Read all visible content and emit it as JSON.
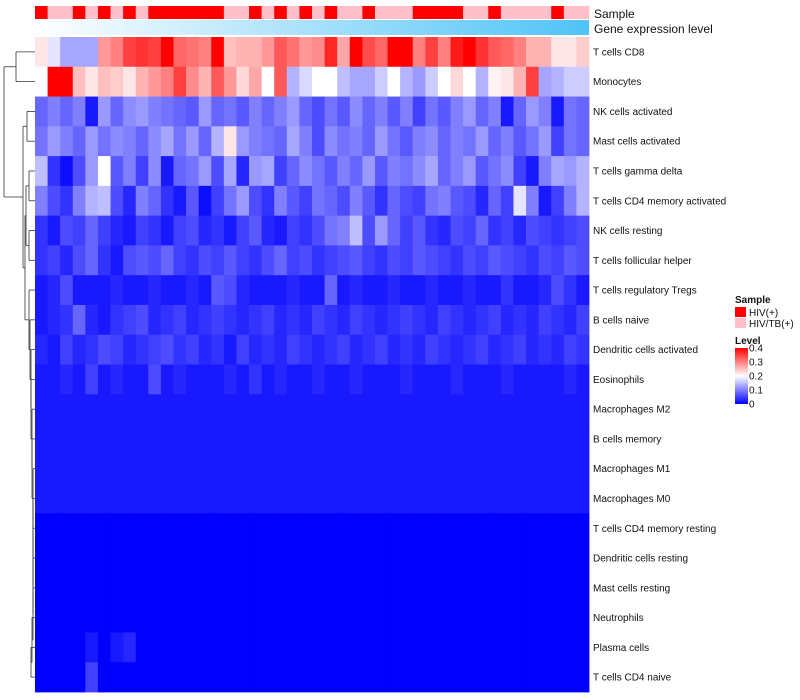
{
  "chart_data": {
    "type": "heatmap",
    "title": "",
    "rows": [
      "T cells CD8",
      "Monocytes",
      "NK cells activated",
      "Mast cells activated",
      "T cells gamma delta",
      "T cells CD4 memory activated",
      "NK cells resting",
      "T cells follicular helper",
      "T cells regulatory  Tregs",
      "B cells naive",
      "Dendritic cells activated",
      "Eosinophils",
      "Macrophages M2",
      "B cells memory",
      "Macrophages M1",
      "Macrophages M0",
      "T cells CD4 memory resting",
      "Dendritic cells resting",
      "Mast cells resting",
      "Neutrophils",
      "Plasma cells",
      "T cells CD4 naive"
    ],
    "n_samples": 44,
    "sample_groups": [
      "HIV(+)",
      "HIV/TB(+)",
      "HIV/TB(+)",
      "HIV(+)",
      "HIV/TB(+)",
      "HIV(+)",
      "HIV/TB(+)",
      "HIV(+)",
      "HIV/TB(+)",
      "HIV(+)",
      "HIV(+)",
      "HIV(+)",
      "HIV(+)",
      "HIV(+)",
      "HIV(+)",
      "HIV/TB(+)",
      "HIV/TB(+)",
      "HIV(+)",
      "HIV/TB(+)",
      "HIV(+)",
      "HIV/TB(+)",
      "HIV(+)",
      "HIV/TB(+)",
      "HIV(+)",
      "HIV/TB(+)",
      "HIV/TB(+)",
      "HIV(+)",
      "HIV/TB(+)",
      "HIV/TB(+)",
      "HIV/TB(+)",
      "HIV(+)",
      "HIV(+)",
      "HIV(+)",
      "HIV(+)",
      "HIV/TB(+)",
      "HIV/TB(+)",
      "HIV(+)",
      "HIV/TB(+)",
      "HIV/TB(+)",
      "HIV/TB(+)",
      "HIV/TB(+)",
      "HIV(+)",
      "HIV/TB(+)",
      "HIV/TB(+)"
    ],
    "values": [
      [
        0.22,
        0.18,
        0.13,
        0.13,
        0.13,
        0.28,
        0.3,
        0.35,
        0.36,
        0.35,
        0.4,
        0.32,
        0.31,
        0.3,
        0.4,
        0.25,
        0.26,
        0.26,
        0.28,
        0.33,
        0.31,
        0.28,
        0.29,
        0.37,
        0.27,
        0.4,
        0.34,
        0.32,
        0.4,
        0.4,
        0.3,
        0.35,
        0.3,
        0.38,
        0.4,
        0.36,
        0.33,
        0.32,
        0.3,
        0.26,
        0.26,
        0.22,
        0.22,
        0.24
      ],
      [
        0.2,
        0.4,
        0.4,
        0.25,
        0.22,
        0.25,
        0.24,
        0.22,
        0.26,
        0.28,
        0.3,
        0.35,
        0.29,
        0.26,
        0.33,
        0.28,
        0.23,
        0.27,
        0.2,
        0.33,
        0.14,
        0.17,
        0.2,
        0.2,
        0.15,
        0.13,
        0.13,
        0.16,
        0.2,
        0.14,
        0.12,
        0.16,
        0.2,
        0.23,
        0.2,
        0.14,
        0.21,
        0.22,
        0.26,
        0.35,
        0.13,
        0.14,
        0.16,
        0.16
      ],
      [
        0.08,
        0.1,
        0.08,
        0.1,
        0.02,
        0.12,
        0.08,
        0.11,
        0.12,
        0.1,
        0.09,
        0.08,
        0.07,
        0.12,
        0.08,
        0.09,
        0.07,
        0.1,
        0.08,
        0.1,
        0.12,
        0.08,
        0.06,
        0.09,
        0.07,
        0.11,
        0.08,
        0.1,
        0.07,
        0.1,
        0.05,
        0.09,
        0.07,
        0.1,
        0.12,
        0.08,
        0.1,
        0.02,
        0.08,
        0.12,
        0.1,
        0.02,
        0.09,
        0.08
      ],
      [
        0.09,
        0.12,
        0.1,
        0.08,
        0.12,
        0.09,
        0.11,
        0.1,
        0.08,
        0.11,
        0.13,
        0.09,
        0.12,
        0.08,
        0.14,
        0.22,
        0.12,
        0.1,
        0.09,
        0.08,
        0.13,
        0.1,
        0.06,
        0.11,
        0.09,
        0.1,
        0.08,
        0.12,
        0.09,
        0.07,
        0.1,
        0.11,
        0.08,
        0.1,
        0.09,
        0.12,
        0.08,
        0.1,
        0.07,
        0.09,
        0.12,
        0.05,
        0.09,
        0.08
      ],
      [
        0.15,
        0.04,
        0.01,
        0.06,
        0.12,
        0.2,
        0.07,
        0.1,
        0.05,
        0.11,
        0.02,
        0.08,
        0.09,
        0.12,
        0.06,
        0.13,
        0.03,
        0.12,
        0.13,
        0.05,
        0.08,
        0.11,
        0.09,
        0.07,
        0.1,
        0.08,
        0.12,
        0.07,
        0.1,
        0.09,
        0.11,
        0.13,
        0.08,
        0.1,
        0.12,
        0.07,
        0.09,
        0.11,
        0.05,
        0.02,
        0.1,
        0.13,
        0.12,
        0.14
      ],
      [
        0.1,
        0.06,
        0.04,
        0.1,
        0.14,
        0.15,
        0.06,
        0.03,
        0.1,
        0.08,
        0.04,
        0.02,
        0.07,
        0.01,
        0.05,
        0.09,
        0.12,
        0.06,
        0.04,
        0.1,
        0.07,
        0.05,
        0.09,
        0.08,
        0.06,
        0.1,
        0.07,
        0.04,
        0.08,
        0.06,
        0.05,
        0.09,
        0.1,
        0.07,
        0.06,
        0.03,
        0.08,
        0.05,
        0.18,
        0.1,
        0.02,
        0.05,
        0.1,
        0.14
      ],
      [
        0.04,
        0.02,
        0.06,
        0.05,
        0.08,
        0.05,
        0.03,
        0.02,
        0.05,
        0.04,
        0.02,
        0.05,
        0.06,
        0.03,
        0.04,
        0.02,
        0.05,
        0.07,
        0.03,
        0.02,
        0.05,
        0.04,
        0.06,
        0.09,
        0.1,
        0.15,
        0.06,
        0.12,
        0.08,
        0.05,
        0.07,
        0.04,
        0.03,
        0.06,
        0.05,
        0.08,
        0.04,
        0.05,
        0.03,
        0.06,
        0.05,
        0.04,
        0.05,
        0.06
      ],
      [
        0.04,
        0.05,
        0.03,
        0.06,
        0.08,
        0.04,
        0.02,
        0.06,
        0.07,
        0.06,
        0.08,
        0.05,
        0.04,
        0.06,
        0.05,
        0.07,
        0.05,
        0.04,
        0.06,
        0.08,
        0.05,
        0.06,
        0.04,
        0.05,
        0.06,
        0.07,
        0.05,
        0.04,
        0.06,
        0.05,
        0.07,
        0.06,
        0.05,
        0.04,
        0.06,
        0.05,
        0.07,
        0.06,
        0.05,
        0.04,
        0.06,
        0.05,
        0.07,
        0.06
      ],
      [
        0.02,
        0.03,
        0.06,
        0.02,
        0.02,
        0.02,
        0.03,
        0.02,
        0.02,
        0.03,
        0.02,
        0.02,
        0.03,
        0.02,
        0.07,
        0.06,
        0.03,
        0.02,
        0.02,
        0.02,
        0.03,
        0.02,
        0.02,
        0.08,
        0.02,
        0.03,
        0.02,
        0.02,
        0.03,
        0.02,
        0.02,
        0.03,
        0.02,
        0.02,
        0.03,
        0.02,
        0.02,
        0.04,
        0.02,
        0.02,
        0.03,
        0.06,
        0.04,
        0.02
      ],
      [
        0.02,
        0.03,
        0.04,
        0.08,
        0.03,
        0.02,
        0.04,
        0.05,
        0.06,
        0.03,
        0.04,
        0.05,
        0.03,
        0.04,
        0.05,
        0.04,
        0.03,
        0.04,
        0.05,
        0.03,
        0.04,
        0.03,
        0.05,
        0.04,
        0.03,
        0.05,
        0.04,
        0.03,
        0.04,
        0.05,
        0.04,
        0.03,
        0.05,
        0.04,
        0.03,
        0.04,
        0.05,
        0.03,
        0.04,
        0.03,
        0.05,
        0.04,
        0.03,
        0.05
      ],
      [
        0.03,
        0.02,
        0.05,
        0.03,
        0.04,
        0.06,
        0.05,
        0.03,
        0.04,
        0.05,
        0.06,
        0.04,
        0.05,
        0.03,
        0.04,
        0.02,
        0.05,
        0.03,
        0.04,
        0.03,
        0.05,
        0.04,
        0.03,
        0.04,
        0.05,
        0.03,
        0.04,
        0.05,
        0.03,
        0.04,
        0.03,
        0.05,
        0.04,
        0.03,
        0.04,
        0.05,
        0.03,
        0.04,
        0.05,
        0.03,
        0.04,
        0.03,
        0.05,
        0.04
      ],
      [
        0.02,
        0.02,
        0.03,
        0.02,
        0.05,
        0.02,
        0.03,
        0.02,
        0.02,
        0.06,
        0.02,
        0.03,
        0.02,
        0.02,
        0.02,
        0.03,
        0.02,
        0.04,
        0.02,
        0.03,
        0.02,
        0.02,
        0.03,
        0.02,
        0.02,
        0.03,
        0.02,
        0.02,
        0.02,
        0.03,
        0.02,
        0.02,
        0.02,
        0.03,
        0.02,
        0.02,
        0.02,
        0.03,
        0.02,
        0.02,
        0.02,
        0.02,
        0.03,
        0.02
      ],
      [
        0.02,
        0.02,
        0.02,
        0.02,
        0.02,
        0.02,
        0.02,
        0.02,
        0.02,
        0.02,
        0.02,
        0.02,
        0.02,
        0.02,
        0.02,
        0.02,
        0.02,
        0.02,
        0.02,
        0.02,
        0.02,
        0.02,
        0.02,
        0.02,
        0.02,
        0.02,
        0.02,
        0.02,
        0.02,
        0.02,
        0.02,
        0.02,
        0.02,
        0.02,
        0.02,
        0.02,
        0.02,
        0.02,
        0.02,
        0.02,
        0.02,
        0.02,
        0.02,
        0.02
      ],
      [
        0.02,
        0.02,
        0.02,
        0.02,
        0.02,
        0.02,
        0.02,
        0.02,
        0.02,
        0.02,
        0.02,
        0.02,
        0.02,
        0.02,
        0.02,
        0.02,
        0.02,
        0.02,
        0.02,
        0.02,
        0.02,
        0.02,
        0.02,
        0.02,
        0.02,
        0.02,
        0.02,
        0.02,
        0.02,
        0.02,
        0.02,
        0.02,
        0.02,
        0.02,
        0.02,
        0.02,
        0.02,
        0.02,
        0.02,
        0.02,
        0.02,
        0.02,
        0.02,
        0.02
      ],
      [
        0.02,
        0.02,
        0.02,
        0.02,
        0.02,
        0.02,
        0.02,
        0.02,
        0.02,
        0.02,
        0.02,
        0.02,
        0.02,
        0.02,
        0.02,
        0.02,
        0.02,
        0.02,
        0.02,
        0.02,
        0.02,
        0.02,
        0.02,
        0.02,
        0.02,
        0.02,
        0.02,
        0.02,
        0.02,
        0.02,
        0.02,
        0.02,
        0.02,
        0.02,
        0.02,
        0.02,
        0.02,
        0.02,
        0.02,
        0.02,
        0.02,
        0.02,
        0.02,
        0.02
      ],
      [
        0.02,
        0.02,
        0.02,
        0.02,
        0.02,
        0.02,
        0.02,
        0.02,
        0.02,
        0.02,
        0.02,
        0.02,
        0.02,
        0.02,
        0.02,
        0.02,
        0.02,
        0.02,
        0.02,
        0.02,
        0.02,
        0.02,
        0.02,
        0.02,
        0.02,
        0.02,
        0.02,
        0.02,
        0.02,
        0.02,
        0.02,
        0.02,
        0.02,
        0.02,
        0.02,
        0.02,
        0.02,
        0.02,
        0.02,
        0.02,
        0.02,
        0.02,
        0.02,
        0.02
      ],
      [
        0.0,
        0.0,
        0.0,
        0.0,
        0.0,
        0.0,
        0.0,
        0.0,
        0.0,
        0.0,
        0.0,
        0.0,
        0.0,
        0.0,
        0.0,
        0.0,
        0.0,
        0.0,
        0.0,
        0.0,
        0.0,
        0.0,
        0.0,
        0.0,
        0.0,
        0.0,
        0.0,
        0.0,
        0.0,
        0.0,
        0.0,
        0.0,
        0.0,
        0.0,
        0.0,
        0.0,
        0.0,
        0.0,
        0.0,
        0.0,
        0.0,
        0.0,
        0.0,
        0.0
      ],
      [
        0.0,
        0.0,
        0.0,
        0.0,
        0.0,
        0.0,
        0.0,
        0.0,
        0.0,
        0.0,
        0.0,
        0.0,
        0.0,
        0.0,
        0.0,
        0.0,
        0.0,
        0.0,
        0.0,
        0.0,
        0.0,
        0.0,
        0.0,
        0.0,
        0.0,
        0.0,
        0.0,
        0.0,
        0.0,
        0.0,
        0.0,
        0.0,
        0.0,
        0.0,
        0.0,
        0.0,
        0.0,
        0.0,
        0.0,
        0.0,
        0.0,
        0.0,
        0.0,
        0.0
      ],
      [
        0.0,
        0.0,
        0.0,
        0.0,
        0.0,
        0.0,
        0.0,
        0.0,
        0.0,
        0.0,
        0.0,
        0.0,
        0.0,
        0.0,
        0.0,
        0.0,
        0.0,
        0.0,
        0.0,
        0.0,
        0.0,
        0.0,
        0.0,
        0.0,
        0.0,
        0.0,
        0.0,
        0.0,
        0.0,
        0.0,
        0.0,
        0.0,
        0.0,
        0.0,
        0.0,
        0.0,
        0.0,
        0.0,
        0.0,
        0.0,
        0.0,
        0.0,
        0.0,
        0.0
      ],
      [
        0.0,
        0.0,
        0.0,
        0.0,
        0.0,
        0.0,
        0.0,
        0.0,
        0.0,
        0.0,
        0.0,
        0.0,
        0.0,
        0.0,
        0.0,
        0.0,
        0.0,
        0.0,
        0.0,
        0.0,
        0.0,
        0.0,
        0.0,
        0.0,
        0.0,
        0.0,
        0.0,
        0.0,
        0.0,
        0.0,
        0.0,
        0.0,
        0.0,
        0.0,
        0.0,
        0.0,
        0.0,
        0.0,
        0.0,
        0.0,
        0.0,
        0.0,
        0.0,
        0.0
      ],
      [
        0.0,
        0.0,
        0.0,
        0.0,
        0.02,
        0.0,
        0.02,
        0.03,
        0.0,
        0.0,
        0.0,
        0.0,
        0.0,
        0.0,
        0.0,
        0.0,
        0.0,
        0.0,
        0.0,
        0.0,
        0.0,
        0.0,
        0.0,
        0.0,
        0.0,
        0.0,
        0.0,
        0.0,
        0.0,
        0.0,
        0.0,
        0.0,
        0.0,
        0.0,
        0.0,
        0.0,
        0.0,
        0.0,
        0.0,
        0.0,
        0.0,
        0.0,
        0.0,
        0.0
      ],
      [
        0.0,
        0.0,
        0.0,
        0.0,
        0.05,
        0.0,
        0.0,
        0.0,
        0.0,
        0.0,
        0.0,
        0.0,
        0.0,
        0.0,
        0.0,
        0.0,
        0.0,
        0.0,
        0.0,
        0.0,
        0.0,
        0.0,
        0.0,
        0.0,
        0.0,
        0.0,
        0.0,
        0.0,
        0.0,
        0.0,
        0.0,
        0.0,
        0.0,
        0.0,
        0.0,
        0.0,
        0.0,
        0.0,
        0.0,
        0.0,
        0.0,
        0.0,
        0.0,
        0.0
      ]
    ],
    "annotation_tracks": [
      "Sample",
      "Gene expression level"
    ],
    "legends": {
      "sample": {
        "title": "Sample",
        "items": [
          {
            "label": "HIV(+)",
            "color": "#ff0000"
          },
          {
            "label": "HIV/TB(+)",
            "color": "#ffc0cb"
          }
        ]
      },
      "level": {
        "title": "Level",
        "range": [
          0,
          0.4
        ],
        "ticks": [
          "0.4",
          "0.3",
          "0.2",
          "0.1",
          "0"
        ],
        "colors": {
          "low": "#0000ff",
          "mid": "#ffffff",
          "high": "#ff0000"
        }
      }
    },
    "gene_expression_gradient": {
      "from": "#ffffff",
      "to": "#4fc3f7"
    }
  }
}
